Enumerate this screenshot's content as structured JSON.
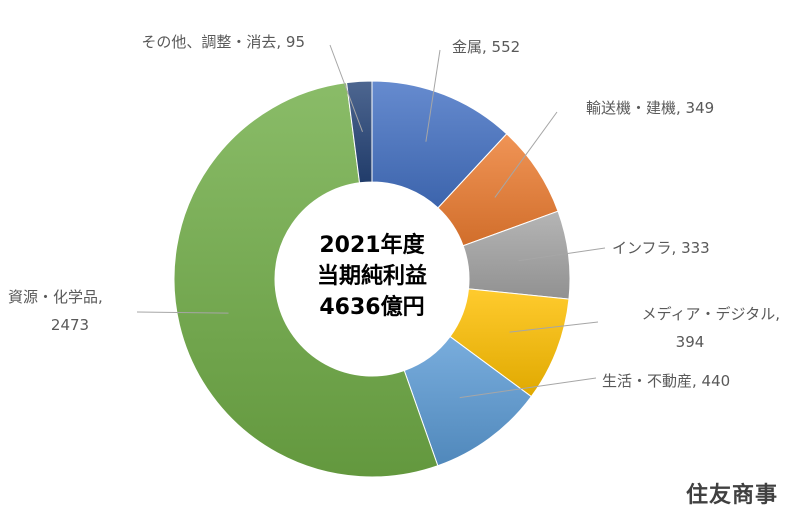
{
  "chart_data": {
    "type": "pie",
    "center_text": [
      "2021年度",
      "当期純利益",
      "4636億円"
    ],
    "series": [
      {
        "name": "金属",
        "value": 552,
        "color": "#4472C4",
        "label": [
          "金属, 552"
        ]
      },
      {
        "name": "輸送機・建機",
        "value": 349,
        "color": "#ED7D31",
        "label": [
          "輸送機・建機, 349"
        ]
      },
      {
        "name": "インフラ",
        "value": 333,
        "color": "#A5A5A5",
        "label": [
          "インフラ, 333"
        ]
      },
      {
        "name": "メディア・デジタル",
        "value": 394,
        "color": "#FFC000",
        "label": [
          "メディア・デジタル,",
          "394"
        ]
      },
      {
        "name": "生活・不動産",
        "value": 440,
        "color": "#5B9BD5",
        "label": [
          "生活・不動産, 440"
        ]
      },
      {
        "name": "資源・化学品",
        "value": 2473,
        "color": "#70AD47",
        "label": [
          "資源・化学品,",
          "2473"
        ]
      },
      {
        "name": "その他、調整・消去",
        "value": 95,
        "color": "#264478",
        "label": [
          "その他、調整・消去, 95"
        ]
      }
    ]
  },
  "brand": "住友商事"
}
